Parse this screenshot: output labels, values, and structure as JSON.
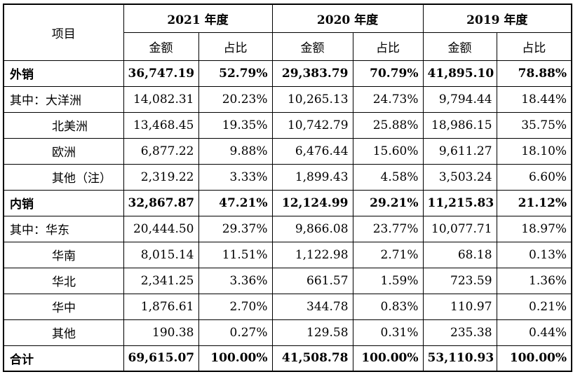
{
  "header": {
    "item_label": "项目",
    "years": [
      "2021 年度",
      "2020 年度",
      "2019 年度"
    ],
    "amount_label": "金额",
    "ratio_label": "占比"
  },
  "rows": [
    {
      "label": "外销",
      "bold": true,
      "indent": false,
      "values": [
        "36,747.19",
        "52.79%",
        "29,383.79",
        "70.79%",
        "41,895.10",
        "78.88%"
      ]
    },
    {
      "label": "其中：大洋洲",
      "bold": false,
      "indent": false,
      "values": [
        "14,082.31",
        "20.23%",
        "10,265.13",
        "24.73%",
        "9,794.44",
        "18.44%"
      ]
    },
    {
      "label": "北美洲",
      "bold": false,
      "indent": true,
      "values": [
        "13,468.45",
        "19.35%",
        "10,742.79",
        "25.88%",
        "18,986.15",
        "35.75%"
      ]
    },
    {
      "label": "欧洲",
      "bold": false,
      "indent": true,
      "values": [
        "6,877.22",
        "9.88%",
        "6,476.44",
        "15.60%",
        "9,611.27",
        "18.10%"
      ]
    },
    {
      "label": "其他（注）",
      "bold": false,
      "indent": true,
      "values": [
        "2,319.22",
        "3.33%",
        "1,899.43",
        "4.58%",
        "3,503.24",
        "6.60%"
      ]
    },
    {
      "label": "内销",
      "bold": true,
      "indent": false,
      "values": [
        "32,867.87",
        "47.21%",
        "12,124.99",
        "29.21%",
        "11,215.83",
        "21.12%"
      ]
    },
    {
      "label": "其中：华东",
      "bold": false,
      "indent": false,
      "values": [
        "20,444.50",
        "29.37%",
        "9,866.08",
        "23.77%",
        "10,077.71",
        "18.97%"
      ]
    },
    {
      "label": "华南",
      "bold": false,
      "indent": true,
      "values": [
        "8,015.14",
        "11.51%",
        "1,122.98",
        "2.71%",
        "68.18",
        "0.13%"
      ]
    },
    {
      "label": "华北",
      "bold": false,
      "indent": true,
      "values": [
        "2,341.25",
        "3.36%",
        "661.57",
        "1.59%",
        "723.59",
        "1.36%"
      ]
    },
    {
      "label": "华中",
      "bold": false,
      "indent": true,
      "values": [
        "1,876.61",
        "2.70%",
        "344.78",
        "0.83%",
        "110.97",
        "0.21%"
      ]
    },
    {
      "label": "其他",
      "bold": false,
      "indent": true,
      "values": [
        "190.38",
        "0.27%",
        "129.58",
        "0.31%",
        "235.38",
        "0.44%"
      ]
    },
    {
      "label": "合计",
      "bold": true,
      "indent": false,
      "values": [
        "69,615.07",
        "100.00%",
        "41,508.78",
        "100.00%",
        "53,110.93",
        "100.00%"
      ]
    }
  ]
}
